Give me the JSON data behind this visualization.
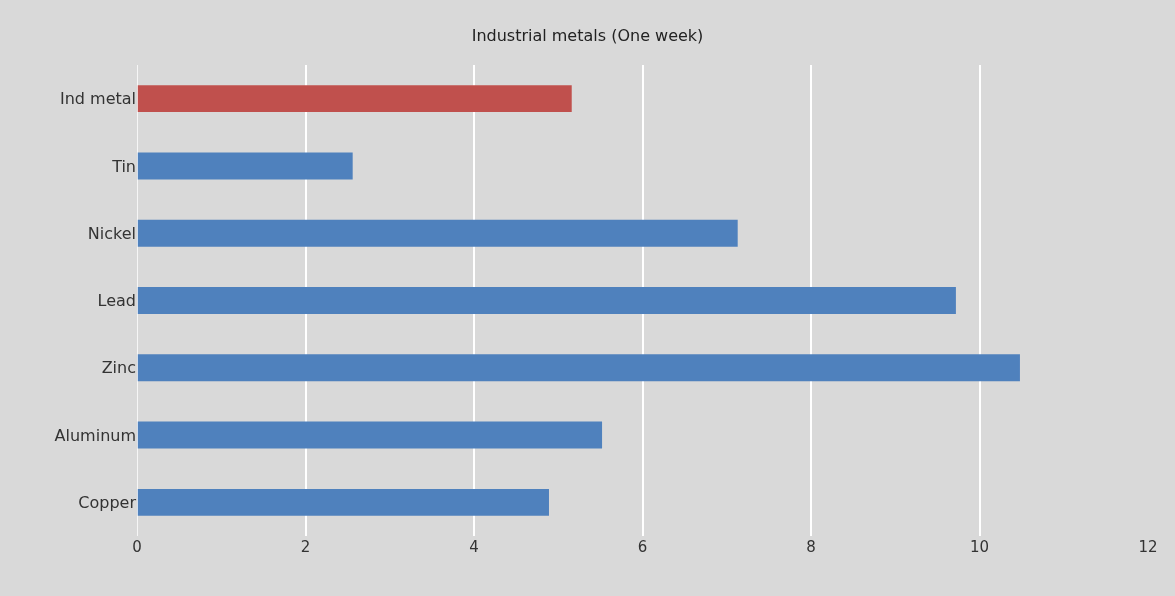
{
  "chart_data": {
    "type": "bar",
    "orientation": "horizontal",
    "title": "Industrial metals (One week)",
    "categories": [
      "Ind metal",
      "Tin",
      "Nickel",
      "Lead",
      "Zinc",
      "Aluminum",
      "Copper"
    ],
    "values": [
      5.16,
      2.56,
      7.13,
      9.72,
      10.48,
      5.52,
      4.89
    ],
    "colors": [
      "#c0504d",
      "#4f81bd",
      "#4f81bd",
      "#4f81bd",
      "#4f81bd",
      "#4f81bd",
      "#4f81bd"
    ],
    "xlim": [
      0,
      12
    ],
    "xticks": [
      0,
      2,
      4,
      6,
      8,
      10,
      12
    ],
    "grid": "x"
  }
}
